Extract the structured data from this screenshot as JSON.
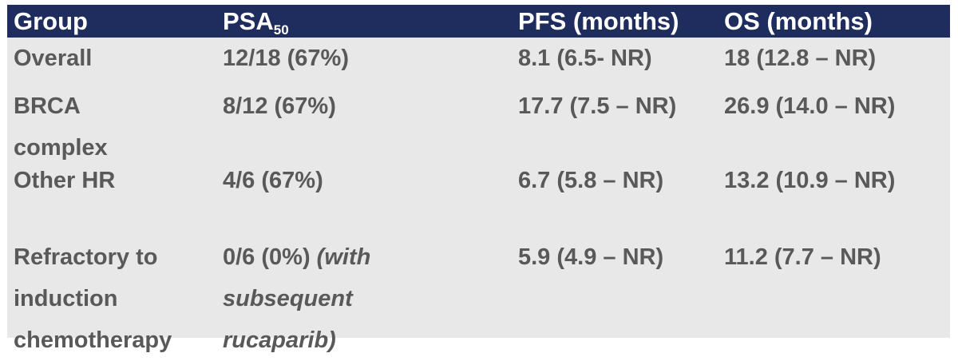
{
  "table": {
    "headers": {
      "group": "Group",
      "psa_base": "PSA",
      "psa_sub": "50",
      "pfs": "PFS (months)",
      "os": "OS (months)"
    },
    "rows": [
      {
        "group": "Overall",
        "psa": "12/18 (67%)",
        "psa_note": "",
        "pfs": "8.1 (6.5- NR)",
        "os": "18 (12.8 – NR)"
      },
      {
        "group": "BRCA\ncomplex",
        "psa": "8/12 (67%)",
        "psa_note": "",
        "pfs": "17.7 (7.5 – NR)",
        "os": "26.9 (14.0 – NR)"
      },
      {
        "group": "Other HR",
        "psa": "4/6 (67%)",
        "psa_note": "",
        "pfs": "6.7 (5.8 – NR)",
        "os": "13.2 (10.9 – NR)"
      },
      {
        "group": "Refractory to\ninduction\nchemotherapy",
        "psa": "0/6 (0%) ",
        "psa_note": "(with\nsubsequent\nrucaparib)",
        "pfs": "5.9 (4.9 – NR)",
        "os": "11.2 (7.7 – NR)"
      }
    ]
  }
}
